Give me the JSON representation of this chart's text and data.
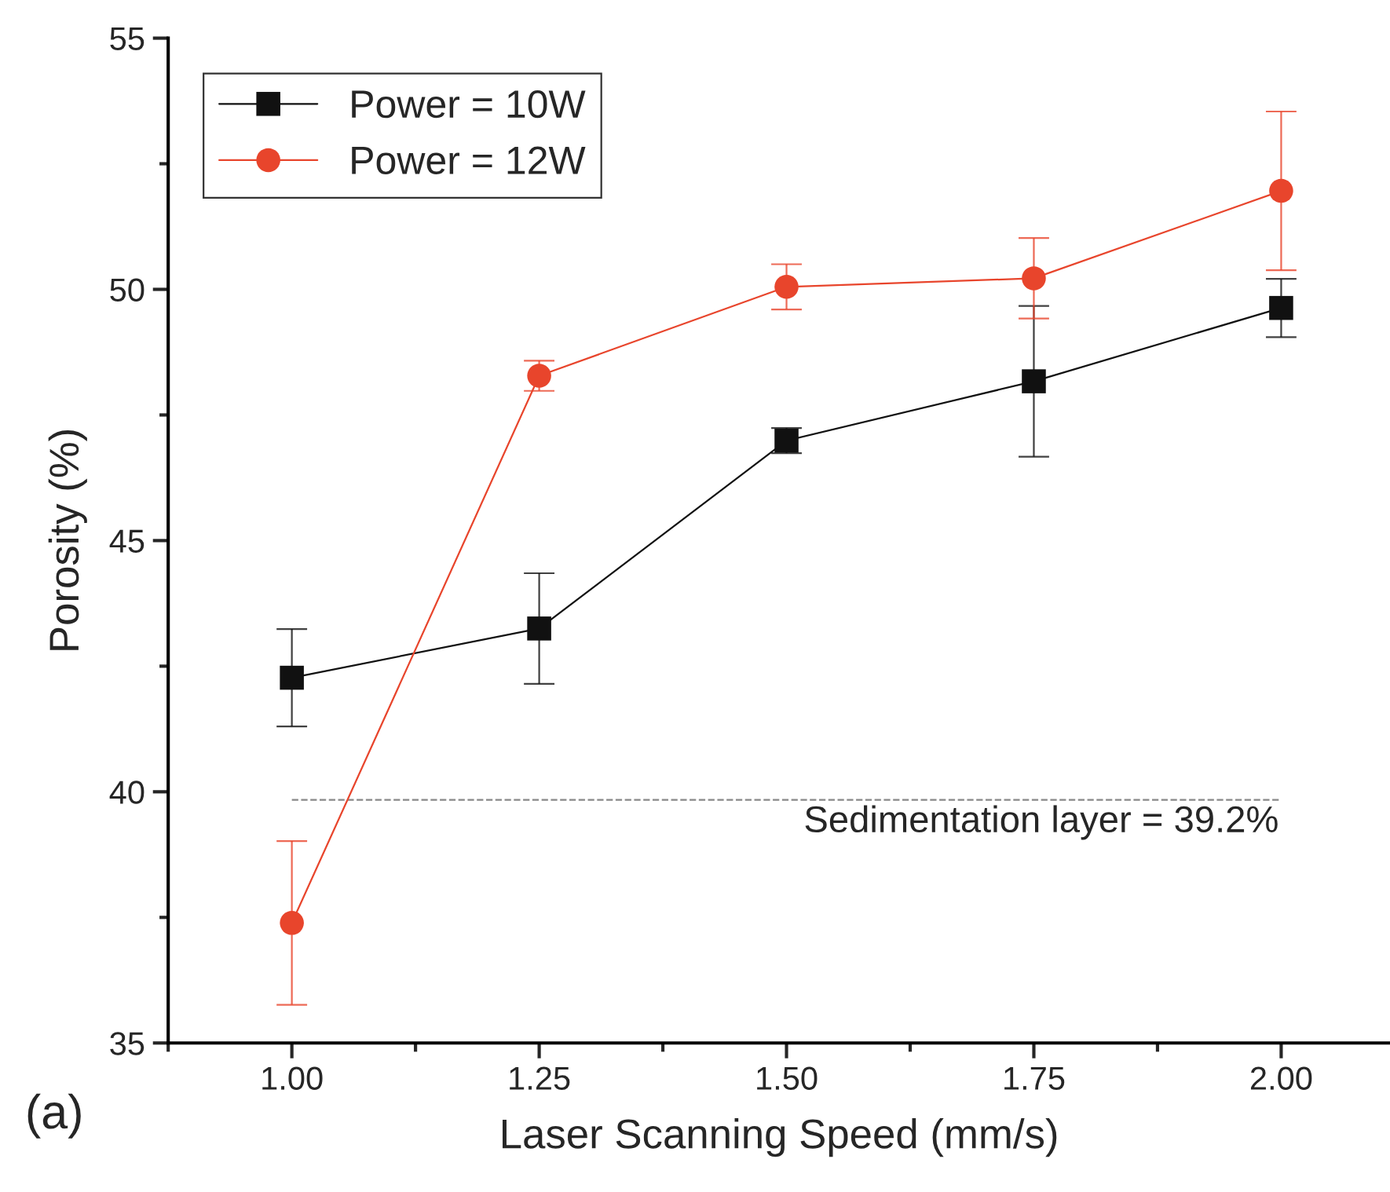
{
  "chart_data": {
    "type": "line",
    "xlabel": "Laser Scanning Speed (mm/s)",
    "ylabel": "Porosity (%)",
    "x": [
      1.0,
      1.25,
      1.5,
      1.75,
      2.0
    ],
    "series": [
      {
        "name": "Power = 10W",
        "color": "#111111",
        "marker": "square",
        "values": [
          42.27,
          43.25,
          46.99,
          48.17,
          49.63
        ],
        "errors": [
          0.97,
          1.1,
          0.25,
          1.5,
          0.58
        ]
      },
      {
        "name": "Power = 12W",
        "color": "#e8452c",
        "marker": "circle",
        "values": [
          37.39,
          48.28,
          50.05,
          50.22,
          51.96
        ],
        "errors": [
          1.63,
          0.3,
          0.45,
          0.8,
          1.58
        ]
      }
    ],
    "xlim": [
      0.875,
      2.11
    ],
    "ylim": [
      35,
      55
    ],
    "xticks": [
      {
        "value": 1.0,
        "label": "1.00"
      },
      {
        "value": 1.25,
        "label": "1.25"
      },
      {
        "value": 1.5,
        "label": "1.50"
      },
      {
        "value": 1.75,
        "label": "1.75"
      },
      {
        "value": 2.0,
        "label": "2.00"
      }
    ],
    "yticks": [
      35,
      40,
      45,
      50,
      55
    ],
    "ref_lines": [
      {
        "axis": "y",
        "value": 39.84,
        "color": "#888888",
        "line_style": "dashed"
      }
    ],
    "annotations": [
      "Sedimentation layer = 39.2%",
      "(a)"
    ],
    "legend": "top left",
    "grid": false
  }
}
